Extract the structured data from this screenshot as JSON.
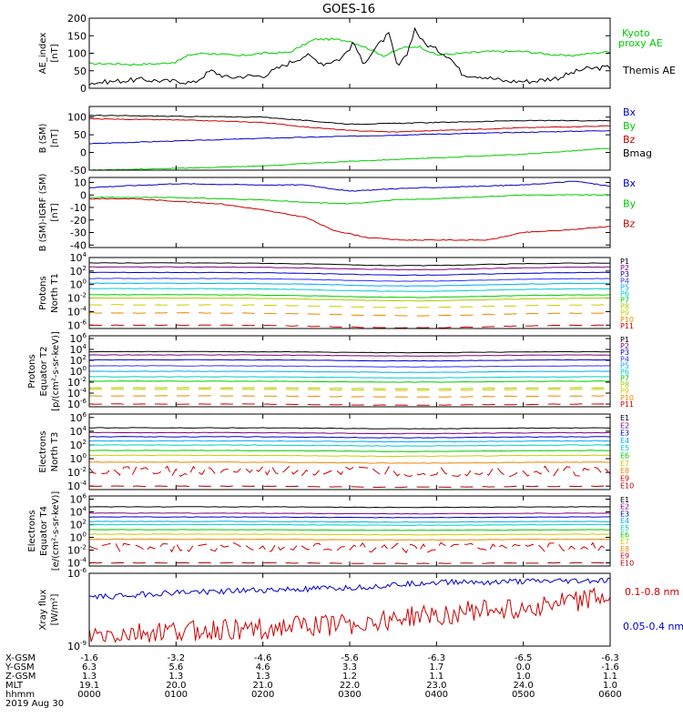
{
  "title": "GOES-16",
  "chart_data": [
    {
      "id": "ae",
      "type": "line",
      "ylabel": [
        "AE_index",
        "[nT]"
      ],
      "ylim": [
        0,
        200
      ],
      "yscale": "linear",
      "yticks": [
        "0",
        "50",
        "100",
        "150",
        "200"
      ],
      "series": [
        {
          "name": "Kyoto proxy AE",
          "legend": [
            "Kyoto",
            "proxy AE"
          ],
          "color": "#00cc00",
          "x": [
            0,
            0.3,
            0.5,
            0.8,
            1.0,
            1.15,
            1.3,
            1.5,
            1.7,
            2.0,
            2.3,
            2.6,
            2.8,
            3.0,
            3.2,
            3.4,
            3.6,
            3.8,
            4.0,
            4.3,
            4.6,
            5.0,
            5.5,
            6.0
          ],
          "y": [
            70,
            70,
            68,
            70,
            75,
            95,
            100,
            98,
            92,
            100,
            102,
            140,
            140,
            135,
            115,
            92,
            115,
            120,
            95,
            100,
            105,
            105,
            92,
            105
          ]
        },
        {
          "name": "Themis AE",
          "legend": [
            "Themis AE"
          ],
          "color": "#000000",
          "x": [
            0,
            0.3,
            0.6,
            0.9,
            1.05,
            1.2,
            1.4,
            1.6,
            1.8,
            2.0,
            2.2,
            2.5,
            2.7,
            2.9,
            3.05,
            3.15,
            3.3,
            3.45,
            3.55,
            3.65,
            3.75,
            3.85,
            4.0,
            4.15,
            4.3,
            4.5,
            4.8,
            5.1,
            5.4,
            5.7,
            6.0
          ],
          "y": [
            15,
            20,
            25,
            20,
            20,
            15,
            50,
            30,
            35,
            35,
            60,
            95,
            70,
            85,
            130,
            70,
            115,
            155,
            60,
            90,
            170,
            130,
            110,
            90,
            40,
            35,
            20,
            20,
            30,
            55,
            60
          ]
        }
      ]
    },
    {
      "id": "bsm",
      "type": "line",
      "ylabel": [
        "B (SM)",
        "[nT]"
      ],
      "ylim": [
        -50,
        130
      ],
      "yscale": "linear",
      "yticks": [
        "-50",
        "0",
        "50",
        "100"
      ],
      "series": [
        {
          "name": "Bx",
          "color": "#0000cc",
          "x": [
            0,
            2,
            4,
            6
          ],
          "y": [
            25,
            40,
            52,
            62
          ]
        },
        {
          "name": "By",
          "color": "#00cc00",
          "x": [
            0,
            1,
            2,
            3,
            4,
            5,
            6
          ],
          "y": [
            -50,
            -45,
            -38,
            -25,
            -15,
            -5,
            12
          ]
        },
        {
          "name": "Bz",
          "color": "#cc0000",
          "x": [
            0,
            1,
            2,
            2.5,
            3.0,
            3.5,
            4.0,
            5.0,
            6.0
          ],
          "y": [
            95,
            92,
            85,
            72,
            62,
            58,
            62,
            70,
            75
          ]
        },
        {
          "name": "Bmag",
          "color": "#000000",
          "x": [
            0,
            1,
            2,
            2.5,
            3.0,
            3.5,
            4.0,
            5.0,
            6.0
          ],
          "y": [
            105,
            102,
            100,
            90,
            80,
            82,
            85,
            90,
            90
          ]
        }
      ]
    },
    {
      "id": "bigrf",
      "type": "line",
      "ylabel": [
        "B (SM)-IGRF (SM)",
        "[nT]"
      ],
      "ylim": [
        -42,
        14
      ],
      "yscale": "linear",
      "yticks": [
        "-40",
        "-30",
        "-20",
        "-10",
        "0",
        "10"
      ],
      "series": [
        {
          "name": "Bx",
          "color": "#0000cc",
          "x": [
            0,
            1,
            2,
            2.5,
            3.0,
            3.5,
            4.0,
            5.0,
            5.6,
            6.0
          ],
          "y": [
            6,
            9,
            8,
            8,
            3,
            5,
            6,
            8,
            11,
            7
          ]
        },
        {
          "name": "By",
          "color": "#00cc00",
          "x": [
            0,
            1,
            2,
            2.5,
            3.0,
            3.5,
            4.0,
            5.0,
            6.0
          ],
          "y": [
            -2,
            -2,
            -4,
            -6,
            -7,
            -4,
            -3,
            0,
            0
          ]
        },
        {
          "name": "Bz",
          "color": "#cc0000",
          "x": [
            0,
            0.5,
            1.0,
            1.5,
            2.0,
            2.5,
            2.8,
            3.2,
            3.6,
            4.0,
            4.6,
            5.0,
            5.5,
            6.0
          ],
          "y": [
            -3,
            -3,
            -5,
            -7,
            -12,
            -18,
            -28,
            -34,
            -36,
            -36,
            -36,
            -30,
            -28,
            -25
          ]
        }
      ]
    },
    {
      "id": "pt1",
      "type": "line",
      "ylabel": [
        "Protons",
        "North T1"
      ],
      "ylim": [
        -6.5,
        4
      ],
      "yscale": "log10",
      "yticks": [
        "10^4",
        "10^2",
        "10^0",
        "10^-2",
        "10^-4",
        "10^-6"
      ],
      "dip": 0.4,
      "series": [
        {
          "name": "P1",
          "color": "#000000",
          "log": 3.2,
          "dashed": false
        },
        {
          "name": "P2",
          "color": "#800080",
          "log": 2.6,
          "dashed": false
        },
        {
          "name": "P3",
          "color": "#0000cc",
          "log": 1.8,
          "dashed": false
        },
        {
          "name": "P4",
          "color": "#3333ff",
          "log": 0.9,
          "dashed": false
        },
        {
          "name": "P5",
          "color": "#00aaff",
          "log": 0.2,
          "dashed": false
        },
        {
          "name": "P6",
          "color": "#00cccc",
          "log": -0.6,
          "dashed": false
        },
        {
          "name": "P7",
          "color": "#00cc00",
          "log": -1.5,
          "dashed": false
        },
        {
          "name": "P8",
          "color": "#aacc00",
          "log": -2.0,
          "dashed": false
        },
        {
          "name": "P9",
          "color": "#cccc00",
          "log": -3.0,
          "dashed": true
        },
        {
          "name": "P10",
          "color": "#ee8800",
          "log": -4.2,
          "dashed": true
        },
        {
          "name": "P11",
          "color": "#cc0000",
          "log": -6.0,
          "dashed": true
        }
      ]
    },
    {
      "id": "pt2",
      "type": "line",
      "ylabel": [
        "Protons",
        "Equator T2",
        "[p/(cm²-s-sr-keV)]"
      ],
      "ylim": [
        -6.5,
        6.5
      ],
      "yscale": "log10",
      "yticks": [
        "10^6",
        "10^4",
        "10^2",
        "10^0",
        "10^-2",
        "10^-4",
        "10^-6"
      ],
      "dip": 0.2,
      "series": [
        {
          "name": "P1",
          "color": "#000000",
          "log": 3.6,
          "dashed": false
        },
        {
          "name": "P2",
          "color": "#800080",
          "log": 3.0,
          "dashed": false
        },
        {
          "name": "P3",
          "color": "#0000cc",
          "log": 2.1,
          "dashed": false
        },
        {
          "name": "P4",
          "color": "#3333ff",
          "log": 1.0,
          "dashed": false
        },
        {
          "name": "P5",
          "color": "#00aaff",
          "log": 0.0,
          "dashed": false
        },
        {
          "name": "P6",
          "color": "#00cccc",
          "log": -1.0,
          "dashed": false
        },
        {
          "name": "P7",
          "color": "#00cc00",
          "log": -1.8,
          "dashed": false
        },
        {
          "name": "P8",
          "color": "#aacc00",
          "log": -3.0,
          "dashed": true
        },
        {
          "name": "P9",
          "color": "#cccc00",
          "log": -3.3,
          "dashed": true
        },
        {
          "name": "P10",
          "color": "#ee8800",
          "log": -4.5,
          "dashed": true
        },
        {
          "name": "P11",
          "color": "#cc0000",
          "log": -6.0,
          "dashed": true
        }
      ]
    },
    {
      "id": "et3",
      "type": "line",
      "ylabel": [
        "Electrons",
        "North T3"
      ],
      "ylim": [
        -4.5,
        6.5
      ],
      "yscale": "log10",
      "yticks": [
        "10^6",
        "10^4",
        "10^2",
        "10^0",
        "10^-2",
        "10^-4"
      ],
      "dip": 0.15,
      "noisy": "E9",
      "series": [
        {
          "name": "E1",
          "color": "#000000",
          "log": 4.5,
          "dashed": false
        },
        {
          "name": "E2",
          "color": "#800080",
          "log": 3.8,
          "dashed": false
        },
        {
          "name": "E3",
          "color": "#0000cc",
          "log": 3.2,
          "dashed": false
        },
        {
          "name": "E4",
          "color": "#00aaff",
          "log": 2.6,
          "dashed": false
        },
        {
          "name": "E5",
          "color": "#00cccc",
          "log": 2.0,
          "dashed": false
        },
        {
          "name": "E6",
          "color": "#00cc00",
          "log": 1.2,
          "dashed": false
        },
        {
          "name": "E7",
          "color": "#cccc00",
          "log": 0.5,
          "dashed": false
        },
        {
          "name": "E8",
          "color": "#ee8800",
          "log": -0.5,
          "dashed": false
        },
        {
          "name": "E9",
          "color": "#cc0000",
          "log": -1.8,
          "dashed": false
        },
        {
          "name": "E10",
          "color": "#aa0000",
          "log": -4.0,
          "dashed": true
        }
      ]
    },
    {
      "id": "et4",
      "type": "line",
      "ylabel": [
        "Electrons",
        "Equator T4",
        "[e/(cm²-s-sr-keV)]"
      ],
      "ylim": [
        -4.5,
        6.5
      ],
      "yscale": "log10",
      "yticks": [
        "10^6",
        "10^4",
        "10^2",
        "10^0",
        "10^-2",
        "10^-4"
      ],
      "dip": 0.1,
      "noisy": "E9",
      "series": [
        {
          "name": "E1",
          "color": "#000000",
          "log": 4.8,
          "dashed": false
        },
        {
          "name": "E2",
          "color": "#800080",
          "log": 3.8,
          "dashed": false
        },
        {
          "name": "E3",
          "color": "#0000cc",
          "log": 3.2,
          "dashed": false
        },
        {
          "name": "E4",
          "color": "#00aaff",
          "log": 2.5,
          "dashed": false
        },
        {
          "name": "E5",
          "color": "#00cccc",
          "log": 2.0,
          "dashed": false
        },
        {
          "name": "E6",
          "color": "#00cc00",
          "log": 1.2,
          "dashed": false
        },
        {
          "name": "E7",
          "color": "#cccc00",
          "log": 0.5,
          "dashed": false
        },
        {
          "name": "E8",
          "color": "#ee8800",
          "log": -0.3,
          "dashed": false
        },
        {
          "name": "E9",
          "color": "#cc0000",
          "log": -1.6,
          "dashed": false
        },
        {
          "name": "E10",
          "color": "#aa0000",
          "log": -4.0,
          "dashed": true
        }
      ]
    },
    {
      "id": "xray",
      "type": "line",
      "ylabel": [
        "Xray flux",
        "[W/m²]"
      ],
      "ylim": [
        -9,
        -6
      ],
      "yscale": "log10",
      "yticks": [
        "10^-6",
        "10^-9"
      ],
      "series": [
        {
          "name": "0.1-0.8 nm",
          "color": "#cc0000",
          "x": [
            0,
            1,
            2,
            3,
            4,
            5,
            6
          ],
          "y": [
            -8.6,
            -8.4,
            -8.3,
            -8.1,
            -7.7,
            -7.4,
            -7.0
          ],
          "noise": 0.45
        },
        {
          "name": "0.05-0.4 nm",
          "color": "#0000cc",
          "x": [
            0,
            1,
            2,
            3,
            4,
            5,
            6
          ],
          "y": [
            -7.0,
            -6.8,
            -6.7,
            -6.6,
            -6.35,
            -6.35,
            -6.3
          ],
          "noise": 0.12
        }
      ]
    }
  ],
  "xaxis": {
    "xlim": [
      0,
      6
    ],
    "rows": [
      {
        "label": "X-GSM",
        "values": [
          "-1.6",
          "-3.2",
          "-4.6",
          "-5.6",
          "-6.3",
          "-6.5",
          "-6.3"
        ]
      },
      {
        "label": "Y-GSM",
        "values": [
          "6.3",
          "5.6",
          "4.6",
          "3.3",
          "1.7",
          "0.0",
          "-1.6"
        ]
      },
      {
        "label": "Z-GSM",
        "values": [
          "1.3",
          "1.3",
          "1.3",
          "1.2",
          "1.1",
          "1.0",
          "1.1"
        ]
      },
      {
        "label": "MLT",
        "values": [
          "19.1",
          "20.0",
          "21.0",
          "22.0",
          "23.0",
          "24.0",
          "1.0"
        ]
      },
      {
        "label": "hhmm",
        "values": [
          "0000",
          "0100",
          "0200",
          "0300",
          "0400",
          "0500",
          "0600"
        ]
      }
    ],
    "date": "2019 Aug 30"
  }
}
